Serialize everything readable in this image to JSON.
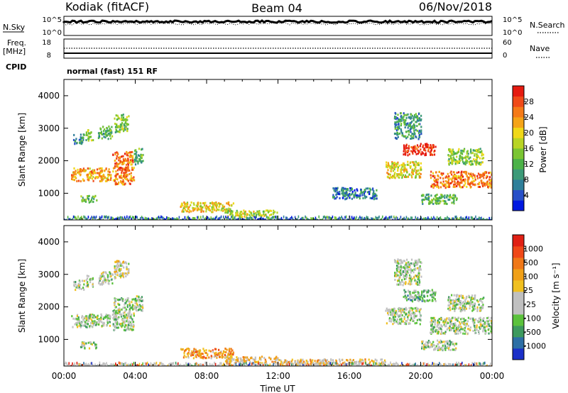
{
  "header": {
    "station": "Kodiak (fitACF)",
    "beam": "Beam 04",
    "date": "06/Nov/2018"
  },
  "summary": {
    "nsky_label": "N.Sky",
    "nsky_ticks": [
      "10^5",
      "10^0"
    ],
    "nsearch_label": "N.Search",
    "nsearch_ticks": [
      "10^5",
      "10^0"
    ],
    "freq_label": "Freq.",
    "freq_unit": "[MHz]",
    "freq_ticks": [
      "18",
      "8"
    ],
    "nave_label": "Nave",
    "nave_ticks": [
      "60",
      "0"
    ],
    "cpid_label": "CPID",
    "cpid_value": "normal (fast) 151 RF"
  },
  "chart_data": [
    {
      "type": "heatmap",
      "name": "power",
      "ylabel": "Slant Range [km]",
      "xlabel": "",
      "xlim": [
        0,
        24
      ],
      "ylim": [
        180,
        4500
      ],
      "yticks": [
        "1000",
        "2000",
        "3000",
        "4000"
      ],
      "colorbar": {
        "label": "Power [dB]",
        "ticks": [
          "4",
          "8",
          "12",
          "16",
          "20",
          "24",
          "28"
        ],
        "colors": [
          "#0018e0",
          "#2850c8",
          "#2f7f9a",
          "#3c9a78",
          "#4cb248",
          "#7ac532",
          "#b8d424",
          "#f0d818",
          "#f5a418",
          "#f57a18",
          "#f04a18",
          "#e51a10"
        ]
      },
      "patches": [
        {
          "t0": 0.5,
          "t1": 1.1,
          "r0": 2550,
          "r1": 2850,
          "level": 3
        },
        {
          "t0": 1.2,
          "t1": 1.6,
          "r0": 2650,
          "r1": 3000,
          "level": 5
        },
        {
          "t0": 1.9,
          "t1": 2.7,
          "r0": 2700,
          "r1": 3100,
          "level": 4
        },
        {
          "t0": 2.8,
          "t1": 3.6,
          "r0": 2900,
          "r1": 3450,
          "level": 5
        },
        {
          "t0": 0.4,
          "t1": 2.6,
          "r0": 1400,
          "r1": 1800,
          "level": 8
        },
        {
          "t0": 2.7,
          "t1": 3.9,
          "r0": 1300,
          "r1": 2300,
          "level": 9
        },
        {
          "t0": 3.9,
          "t1": 4.4,
          "r0": 1900,
          "r1": 2400,
          "level": 4
        },
        {
          "t0": 0.9,
          "t1": 1.8,
          "r0": 750,
          "r1": 950,
          "level": 4
        },
        {
          "t0": 6.5,
          "t1": 9.5,
          "r0": 450,
          "r1": 750,
          "level": 7
        },
        {
          "t0": 9.0,
          "t1": 12.0,
          "r0": 300,
          "r1": 500,
          "level": 6
        },
        {
          "t0": 15.0,
          "t1": 17.5,
          "r0": 850,
          "r1": 1200,
          "level": 2
        },
        {
          "t0": 18.0,
          "t1": 20.0,
          "r0": 1500,
          "r1": 2000,
          "level": 7
        },
        {
          "t0": 19.0,
          "t1": 20.8,
          "r0": 2200,
          "r1": 2550,
          "level": 11
        },
        {
          "t0": 20.5,
          "t1": 24.0,
          "r0": 1200,
          "r1": 1700,
          "level": 9
        },
        {
          "t0": 20.0,
          "t1": 22.0,
          "r0": 700,
          "r1": 1000,
          "level": 4
        },
        {
          "t0": 18.5,
          "t1": 20.0,
          "r0": 2700,
          "r1": 3500,
          "level": 3
        },
        {
          "t0": 21.5,
          "t1": 23.5,
          "r0": 1900,
          "r1": 2400,
          "level": 5
        }
      ]
    },
    {
      "type": "heatmap",
      "name": "velocity",
      "ylabel": "Slant Range [km]",
      "xlabel": "Time UT",
      "xlim": [
        0,
        24
      ],
      "ylim": [
        180,
        4500
      ],
      "xticks": [
        "00:00",
        "04:00",
        "08:00",
        "12:00",
        "16:00",
        "20:00",
        "00:00"
      ],
      "yticks": [
        "1000",
        "2000",
        "3000",
        "4000"
      ],
      "colorbar": {
        "label": "Velocity [m s⁻¹]",
        "ticks": [
          "1000",
          "500",
          "100",
          "25",
          "-25",
          "-100",
          "-500",
          "-1000"
        ],
        "colors": [
          "#1b30c8",
          "#2d6fa5",
          "#3d9a5e",
          "#5bc23c",
          "#c0c0c0",
          "#c0c0c0",
          "#f0c020",
          "#f0a018",
          "#f07818",
          "#f04818",
          "#e02014"
        ]
      },
      "patches": [
        {
          "t0": 0.5,
          "t1": 1.1,
          "r0": 2550,
          "r1": 2850,
          "level": 4
        },
        {
          "t0": 1.2,
          "t1": 1.6,
          "r0": 2650,
          "r1": 3000,
          "level": 4
        },
        {
          "t0": 1.9,
          "t1": 2.7,
          "r0": 2700,
          "r1": 3100,
          "level": 4
        },
        {
          "t0": 2.8,
          "t1": 3.6,
          "r0": 2900,
          "r1": 3450,
          "level": 5
        },
        {
          "t0": 0.4,
          "t1": 2.6,
          "r0": 1400,
          "r1": 1800,
          "level": 4
        },
        {
          "t0": 2.7,
          "t1": 3.9,
          "r0": 1300,
          "r1": 2300,
          "level": 4
        },
        {
          "t0": 3.9,
          "t1": 4.4,
          "r0": 1900,
          "r1": 2400,
          "level": 4
        },
        {
          "t0": 0.9,
          "t1": 1.8,
          "r0": 750,
          "r1": 950,
          "level": 4
        },
        {
          "t0": 6.5,
          "t1": 9.5,
          "r0": 450,
          "r1": 750,
          "level": 7
        },
        {
          "t0": 9.0,
          "t1": 12.0,
          "r0": 300,
          "r1": 500,
          "level": 6
        },
        {
          "t0": 12.0,
          "t1": 18.0,
          "r0": 250,
          "r1": 420,
          "level": 6
        },
        {
          "t0": 18.0,
          "t1": 20.0,
          "r0": 1500,
          "r1": 2000,
          "level": 4
        },
        {
          "t0": 19.0,
          "t1": 20.8,
          "r0": 2200,
          "r1": 2550,
          "level": 3
        },
        {
          "t0": 20.5,
          "t1": 24.0,
          "r0": 1200,
          "r1": 1700,
          "level": 4
        },
        {
          "t0": 20.0,
          "t1": 22.0,
          "r0": 700,
          "r1": 1000,
          "level": 4
        },
        {
          "t0": 18.5,
          "t1": 20.0,
          "r0": 2700,
          "r1": 3500,
          "level": 4
        },
        {
          "t0": 21.5,
          "t1": 23.5,
          "r0": 1900,
          "r1": 2400,
          "level": 4
        }
      ]
    }
  ]
}
